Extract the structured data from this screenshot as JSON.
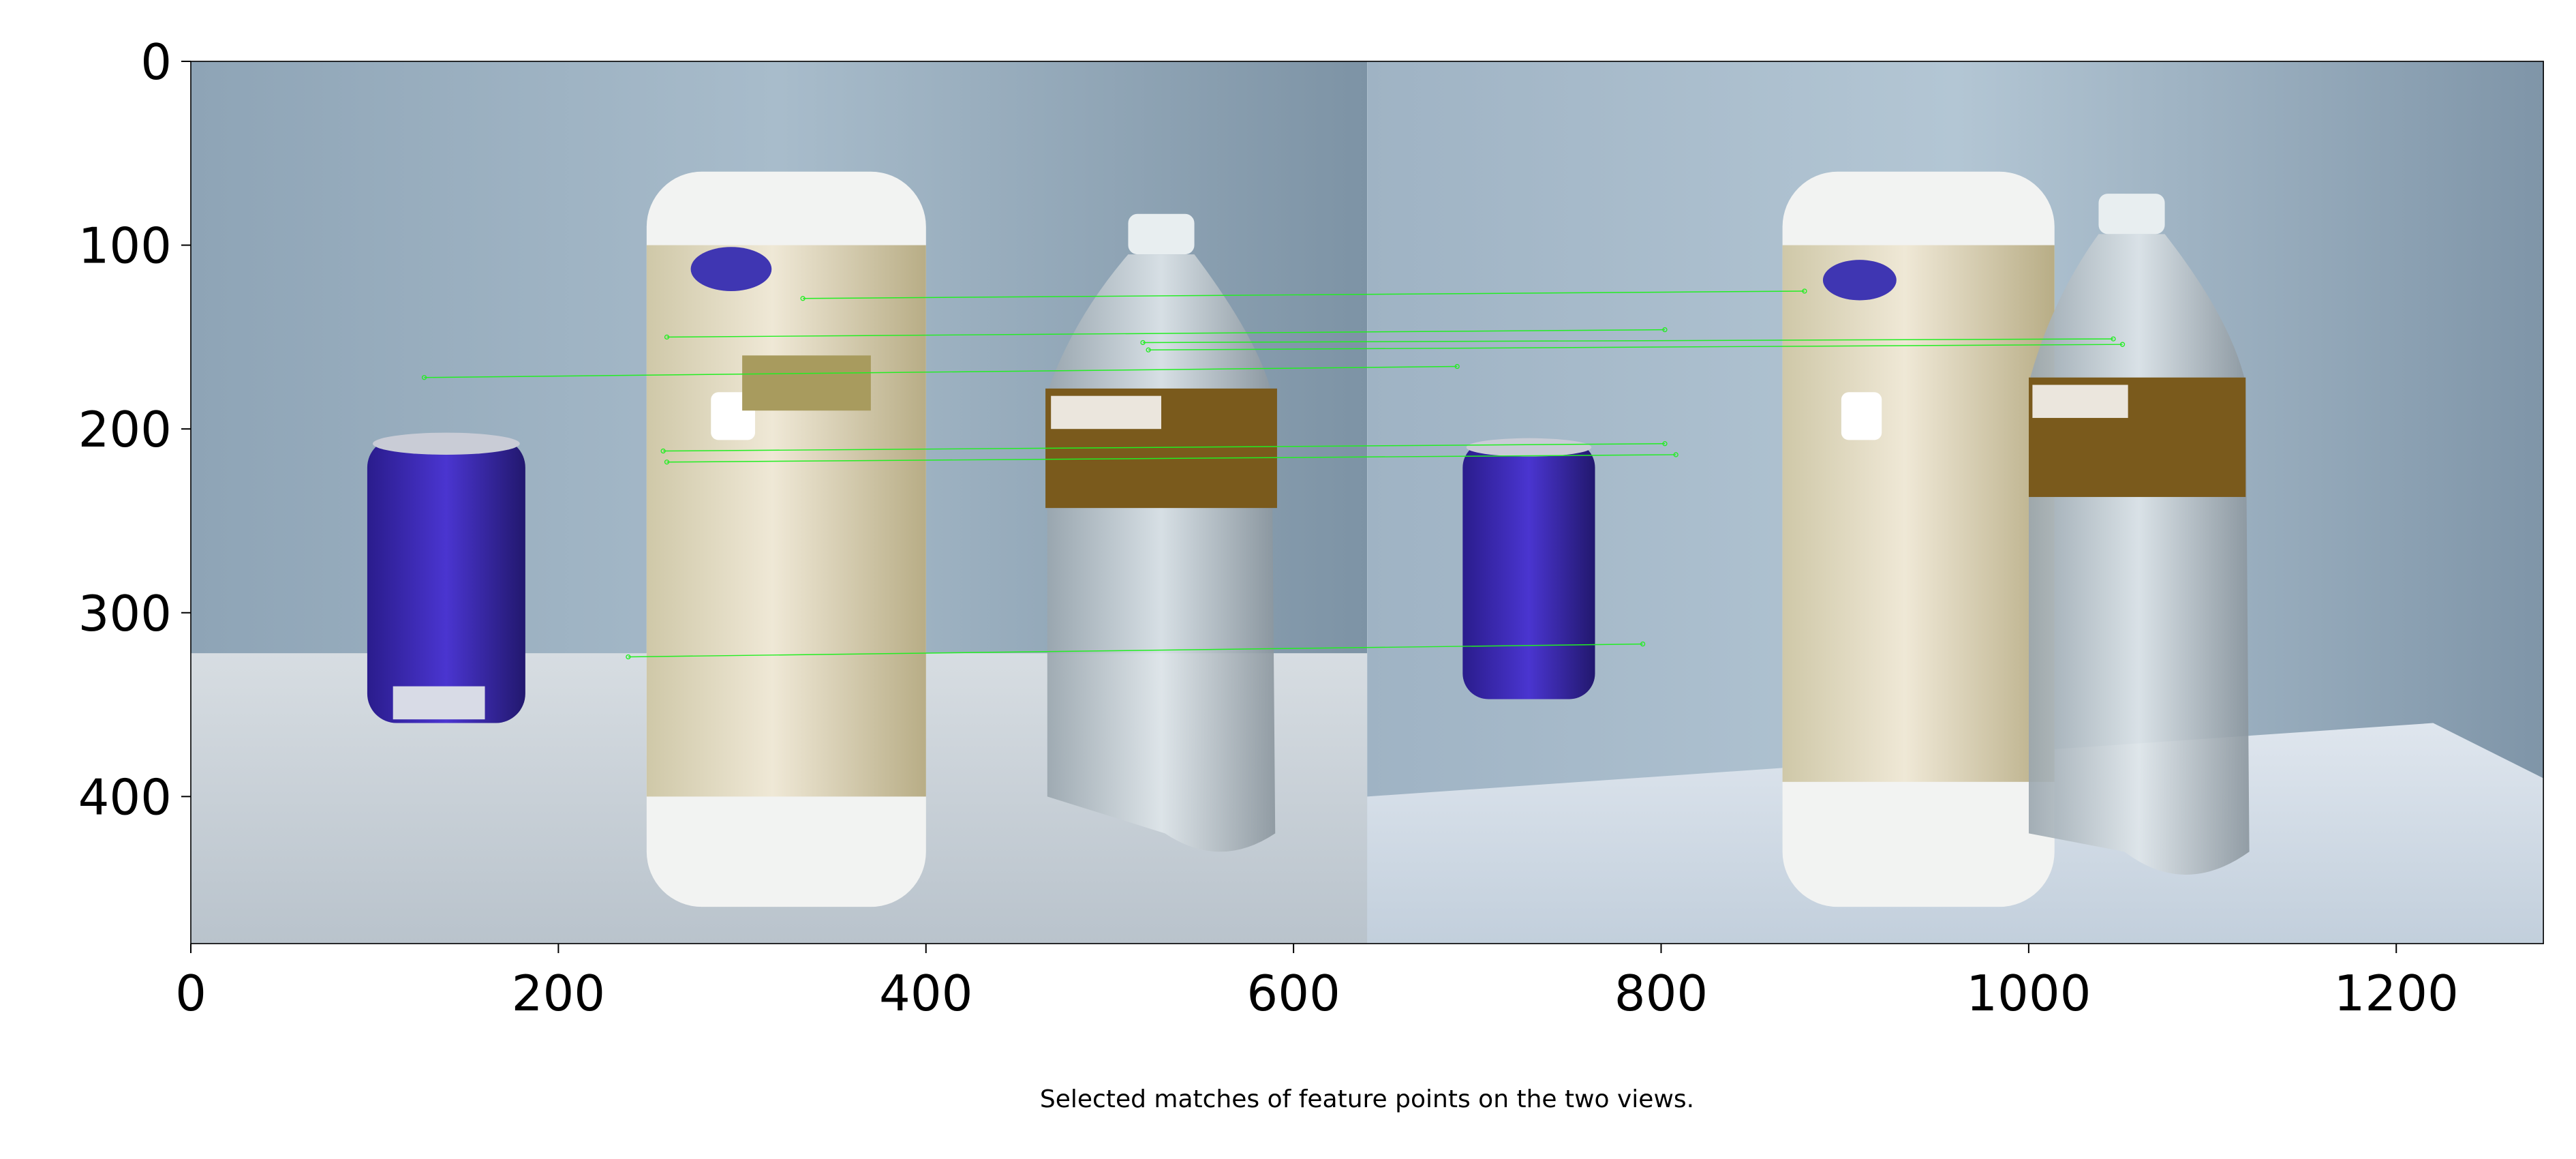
{
  "chart_data": {
    "type": "scatter",
    "title": "",
    "xlabel": "",
    "ylabel": "",
    "xlim": [
      0,
      1280
    ],
    "ylim": [
      480,
      0
    ],
    "grid": false,
    "x_ticks": [
      0,
      200,
      400,
      600,
      800,
      1000,
      1200
    ],
    "y_ticks": [
      0,
      100,
      200,
      300,
      400
    ],
    "match_color": "#22ee22",
    "caption": "Selected matches of feature points on the two views.",
    "matches": [
      {
        "x1": 333,
        "y1": 129,
        "x2": 878,
        "y2": 125
      },
      {
        "x1": 259,
        "y1": 150,
        "x2": 802,
        "y2": 146
      },
      {
        "x1": 518,
        "y1": 153,
        "x2": 1046,
        "y2": 151
      },
      {
        "x1": 521,
        "y1": 157,
        "x2": 1051,
        "y2": 154
      },
      {
        "x1": 127,
        "y1": 172,
        "x2": 689,
        "y2": 166
      },
      {
        "x1": 257,
        "y1": 212,
        "x2": 802,
        "y2": 208
      },
      {
        "x1": 259,
        "y1": 218,
        "x2": 808,
        "y2": 214
      },
      {
        "x1": 238,
        "y1": 324,
        "x2": 790,
        "y2": 317
      }
    ]
  }
}
